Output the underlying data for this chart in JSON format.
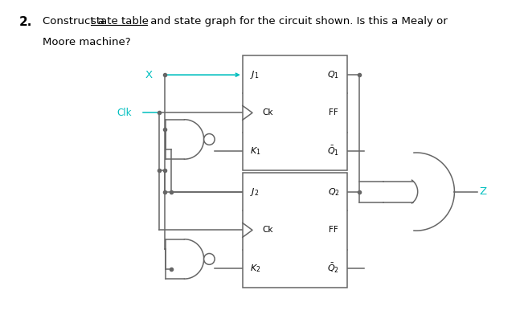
{
  "title_number": "2.",
  "title_pre": "Construct a ",
  "title_underlined": "state table",
  "title_post": " and state graph for the circuit shown. Is this a Mealy or",
  "title_line2": "Moore machine?",
  "bg_color": "#ffffff",
  "text_color": "#000000",
  "cyan_color": "#00bfbf",
  "line_color": "#666666",
  "lw": 1.1
}
